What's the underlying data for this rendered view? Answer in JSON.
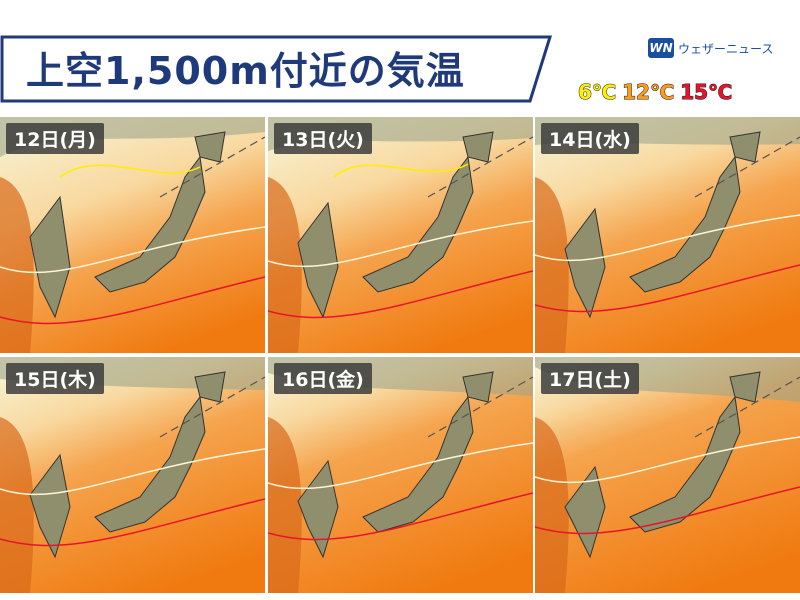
{
  "header": {
    "title": "上空1,500m付近の気温",
    "logo": "WN",
    "brand": "ウェザーニュース",
    "legend": [
      {
        "label": "6℃",
        "color": "#ffee00"
      },
      {
        "label": "12℃",
        "color": "#ff9a1a"
      },
      {
        "label": "15℃",
        "color": "#e8132b"
      }
    ]
  },
  "panels": [
    {
      "label": "12日(月)"
    },
    {
      "label": "13日(火)"
    },
    {
      "label": "14日(水)"
    },
    {
      "label": "15日(木)"
    },
    {
      "label": "16日(金)"
    },
    {
      "label": "17日(土)"
    }
  ]
}
